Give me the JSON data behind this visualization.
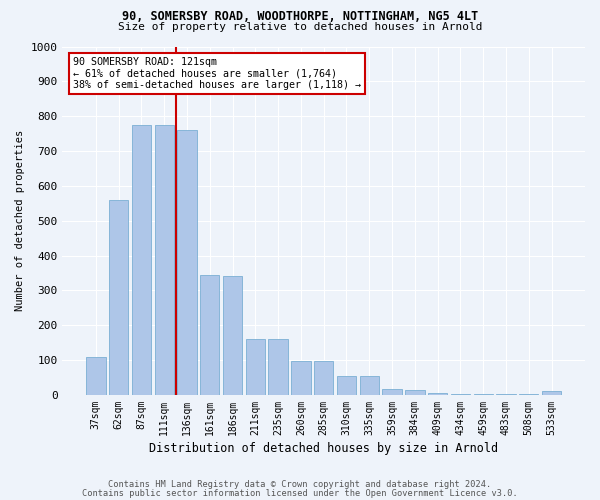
{
  "title1": "90, SOMERSBY ROAD, WOODTHORPE, NOTTINGHAM, NG5 4LT",
  "title2": "Size of property relative to detached houses in Arnold",
  "xlabel": "Distribution of detached houses by size in Arnold",
  "ylabel": "Number of detached properties",
  "bar_color": "#aec6e8",
  "bar_edge_color": "#7bafd4",
  "categories": [
    "37sqm",
    "62sqm",
    "87sqm",
    "111sqm",
    "136sqm",
    "161sqm",
    "186sqm",
    "211sqm",
    "235sqm",
    "260sqm",
    "285sqm",
    "310sqm",
    "335sqm",
    "359sqm",
    "384sqm",
    "409sqm",
    "434sqm",
    "459sqm",
    "483sqm",
    "508sqm",
    "533sqm"
  ],
  "values": [
    110,
    560,
    775,
    775,
    760,
    345,
    340,
    160,
    160,
    97,
    97,
    55,
    55,
    18,
    13,
    5,
    3,
    3,
    3,
    3,
    10
  ],
  "vline_color": "#cc0000",
  "vline_pos": 3.5,
  "annotation_text": "90 SOMERSBY ROAD: 121sqm\n← 61% of detached houses are smaller (1,764)\n38% of semi-detached houses are larger (1,118) →",
  "annotation_box_color": "#ffffff",
  "annotation_edge_color": "#cc0000",
  "footer1": "Contains HM Land Registry data © Crown copyright and database right 2024.",
  "footer2": "Contains public sector information licensed under the Open Government Licence v3.0.",
  "bg_color": "#eef3fa",
  "plot_bg_color": "#eef3fa",
  "ylim": [
    0,
    1000
  ],
  "yticks": [
    0,
    100,
    200,
    300,
    400,
    500,
    600,
    700,
    800,
    900,
    1000
  ]
}
